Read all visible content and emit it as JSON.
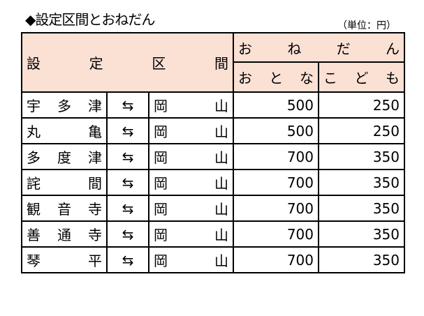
{
  "title": "◆設定区間とおねだん",
  "unit": "（単位：円）",
  "header": {
    "section": "設定区間",
    "fare": "おねだん",
    "adult": "おとな",
    "child": "こども"
  },
  "header_color": "#fbe0d4",
  "arrow": "⇆",
  "rows": [
    {
      "from": "宇多津",
      "to": "岡山",
      "adult": "500",
      "child": "250"
    },
    {
      "from": "丸亀",
      "to": "岡山",
      "adult": "500",
      "child": "250"
    },
    {
      "from": "多度津",
      "to": "岡山",
      "adult": "700",
      "child": "350"
    },
    {
      "from": "詫間",
      "to": "岡山",
      "adult": "700",
      "child": "350"
    },
    {
      "from": "観音寺",
      "to": "岡山",
      "adult": "700",
      "child": "350"
    },
    {
      "from": "善通寺",
      "to": "岡山",
      "adult": "700",
      "child": "350"
    },
    {
      "from": "琴平",
      "to": "岡山",
      "adult": "700",
      "child": "350"
    }
  ]
}
